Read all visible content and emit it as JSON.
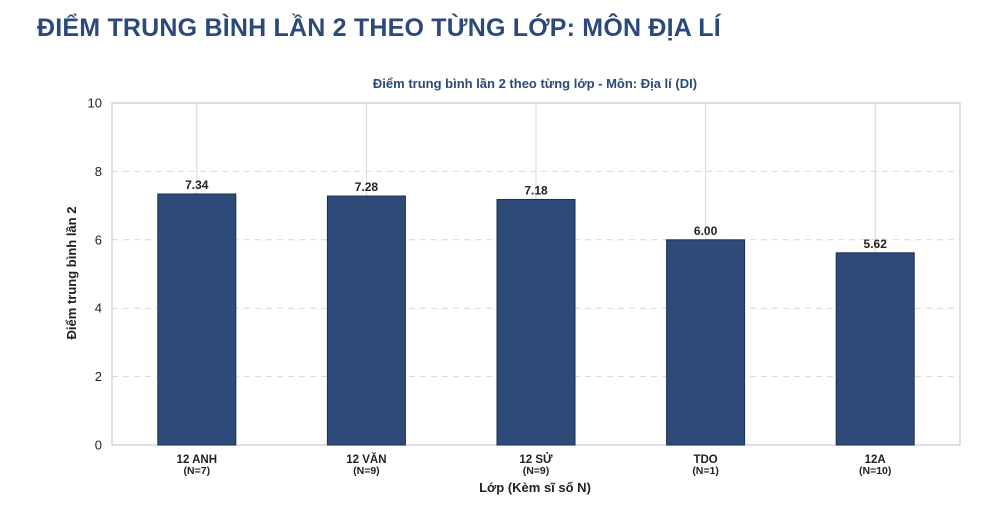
{
  "page": {
    "title": "ĐIỂM TRUNG BÌNH LẦN 2 THEO TỪNG LỚP: MÔN ĐỊA LÍ"
  },
  "chart_data": {
    "type": "bar",
    "title": "Điểm trung bình lần 2 theo từng lớp - Môn: Địa lí (DI)",
    "xlabel": "Lớp (Kèm sĩ số N)",
    "ylabel": "Điểm trung bình lần 2",
    "categories": [
      "12 ANH",
      "12 VĂN",
      "12 SỬ",
      "TDO",
      "12A"
    ],
    "category_counts": [
      "(N=7)",
      "(N=9)",
      "(N=9)",
      "(N=1)",
      "(N=10)"
    ],
    "values": [
      7.34,
      7.28,
      7.18,
      6.0,
      5.62
    ],
    "value_labels": [
      "7.34",
      "7.28",
      "7.18",
      "6.00",
      "5.62"
    ],
    "ylim": [
      0,
      10
    ],
    "yticks": [
      0,
      2,
      4,
      6,
      8,
      10
    ],
    "grid": "horizontal dashed",
    "colors": {
      "bar": "#2d4a78",
      "bar_edge": "#1c2f50",
      "title": "#2b4a7a",
      "grid": "#d9d4e2",
      "axes": "#cfc8da"
    }
  }
}
